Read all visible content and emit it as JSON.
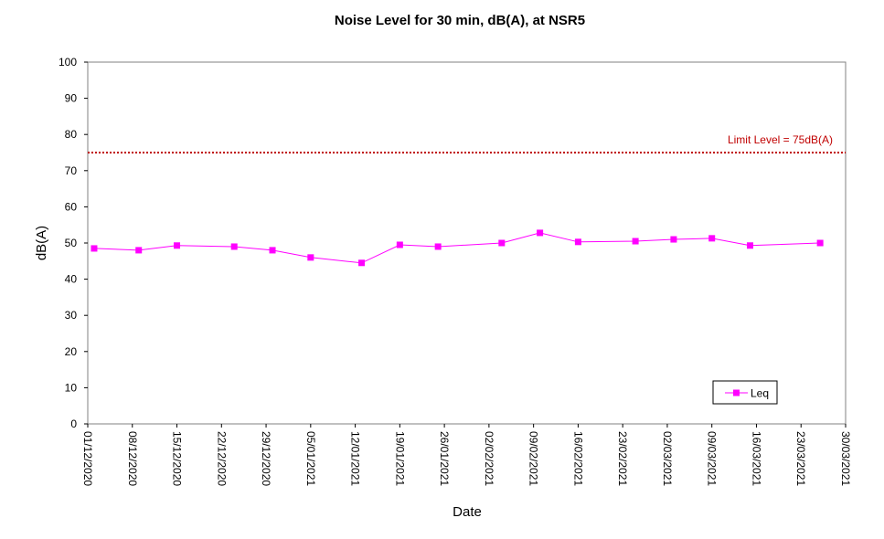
{
  "chart_data": {
    "type": "line",
    "title": "Noise Level for 30 min, dB(A), at NSR5",
    "xlabel": "Date",
    "ylabel": "dB(A)",
    "ylim": [
      0,
      100
    ],
    "yticks": [
      0,
      10,
      20,
      30,
      40,
      50,
      60,
      70,
      80,
      90,
      100
    ],
    "xlim": [
      "2020-12-01",
      "2021-03-30"
    ],
    "xtick_labels": [
      "01/12/2020",
      "08/12/2020",
      "15/12/2020",
      "22/12/2020",
      "29/12/2020",
      "05/01/2021",
      "12/01/2021",
      "19/01/2021",
      "26/01/2021",
      "02/02/2021",
      "09/02/2021",
      "16/02/2021",
      "23/02/2021",
      "02/03/2021",
      "09/03/2021",
      "16/03/2021",
      "23/03/2021",
      "30/03/2021"
    ],
    "grid": false,
    "legend_position": "bottom-right",
    "series": [
      {
        "name": "Leq",
        "color": "#ff00ff",
        "marker": "square",
        "points": [
          {
            "x": "2020-12-02",
            "y": 48.5
          },
          {
            "x": "2020-12-09",
            "y": 48.0
          },
          {
            "x": "2020-12-15",
            "y": 49.3
          },
          {
            "x": "2020-12-24",
            "y": 49.0
          },
          {
            "x": "2020-12-30",
            "y": 48.0
          },
          {
            "x": "2021-01-05",
            "y": 46.0
          },
          {
            "x": "2021-01-13",
            "y": 44.5
          },
          {
            "x": "2021-01-19",
            "y": 49.5
          },
          {
            "x": "2021-01-25",
            "y": 49.0
          },
          {
            "x": "2021-02-04",
            "y": 50.0
          },
          {
            "x": "2021-02-10",
            "y": 52.8
          },
          {
            "x": "2021-02-16",
            "y": 50.3
          },
          {
            "x": "2021-02-25",
            "y": 50.5
          },
          {
            "x": "2021-03-03",
            "y": 51.0
          },
          {
            "x": "2021-03-09",
            "y": 51.3
          },
          {
            "x": "2021-03-15",
            "y": 49.3
          },
          {
            "x": "2021-03-26",
            "y": 50.0
          }
        ]
      }
    ],
    "limit_line": {
      "value": 75,
      "label": "Limit Level = 75dB(A)",
      "color": "#c00000",
      "style": "dotted"
    }
  }
}
